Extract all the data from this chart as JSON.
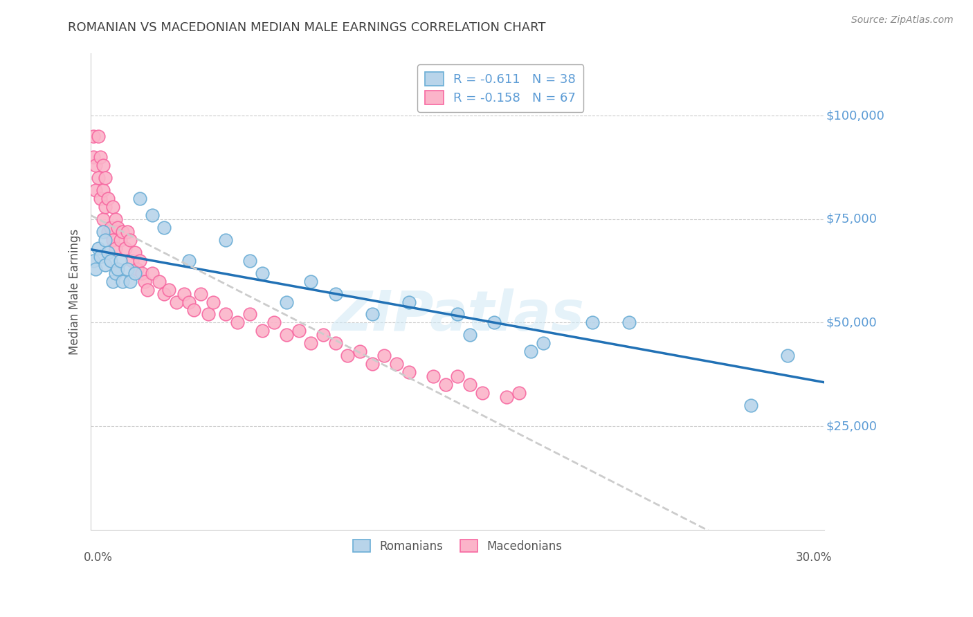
{
  "title": "ROMANIAN VS MACEDONIAN MEDIAN MALE EARNINGS CORRELATION CHART",
  "source": "Source: ZipAtlas.com",
  "ylabel": "Median Male Earnings",
  "xlim": [
    0.0,
    0.3
  ],
  "ylim": [
    0,
    115000
  ],
  "ytick_vals": [
    25000,
    50000,
    75000,
    100000
  ],
  "ytick_labels": [
    "$25,000",
    "$50,000",
    "$75,000",
    "$100,000"
  ],
  "watermark": "ZIPatlas",
  "romanian_face": "#b8d4ea",
  "romanian_edge": "#6baed6",
  "macedonian_face": "#fbb4c9",
  "macedonian_edge": "#f768a1",
  "romanian_line_color": "#2171b5",
  "macedonian_line_color": "#cccccc",
  "axis_label_color": "#5b9bd5",
  "title_color": "#404040",
  "source_color": "#888888",
  "watermark_color": "#d0e8f5",
  "legend_text_color": "#5b9bd5",
  "romanians_x": [
    0.001,
    0.002,
    0.003,
    0.004,
    0.005,
    0.006,
    0.006,
    0.007,
    0.008,
    0.009,
    0.01,
    0.011,
    0.012,
    0.013,
    0.015,
    0.016,
    0.018,
    0.02,
    0.025,
    0.03,
    0.04,
    0.055,
    0.065,
    0.07,
    0.08,
    0.09,
    0.1,
    0.115,
    0.13,
    0.15,
    0.155,
    0.165,
    0.18,
    0.185,
    0.205,
    0.22,
    0.27,
    0.285
  ],
  "romanians_y": [
    65000,
    63000,
    68000,
    66000,
    72000,
    64000,
    70000,
    67000,
    65000,
    60000,
    62000,
    63000,
    65000,
    60000,
    63000,
    60000,
    62000,
    80000,
    76000,
    73000,
    65000,
    70000,
    65000,
    62000,
    55000,
    60000,
    57000,
    52000,
    55000,
    52000,
    47000,
    50000,
    43000,
    45000,
    50000,
    50000,
    30000,
    42000
  ],
  "macedonians_x": [
    0.001,
    0.001,
    0.002,
    0.002,
    0.003,
    0.003,
    0.004,
    0.004,
    0.005,
    0.005,
    0.005,
    0.006,
    0.006,
    0.007,
    0.007,
    0.008,
    0.009,
    0.009,
    0.01,
    0.01,
    0.011,
    0.012,
    0.013,
    0.014,
    0.015,
    0.016,
    0.017,
    0.018,
    0.019,
    0.02,
    0.021,
    0.022,
    0.023,
    0.025,
    0.028,
    0.03,
    0.032,
    0.035,
    0.038,
    0.04,
    0.042,
    0.045,
    0.048,
    0.05,
    0.055,
    0.06,
    0.065,
    0.07,
    0.075,
    0.08,
    0.085,
    0.09,
    0.095,
    0.1,
    0.105,
    0.11,
    0.115,
    0.12,
    0.125,
    0.13,
    0.14,
    0.145,
    0.15,
    0.155,
    0.16,
    0.17,
    0.175
  ],
  "macedonians_y": [
    95000,
    90000,
    88000,
    82000,
    95000,
    85000,
    90000,
    80000,
    88000,
    82000,
    75000,
    85000,
    78000,
    80000,
    72000,
    73000,
    78000,
    70000,
    75000,
    68000,
    73000,
    70000,
    72000,
    68000,
    72000,
    70000,
    65000,
    67000,
    63000,
    65000,
    62000,
    60000,
    58000,
    62000,
    60000,
    57000,
    58000,
    55000,
    57000,
    55000,
    53000,
    57000,
    52000,
    55000,
    52000,
    50000,
    52000,
    48000,
    50000,
    47000,
    48000,
    45000,
    47000,
    45000,
    42000,
    43000,
    40000,
    42000,
    40000,
    38000,
    37000,
    35000,
    37000,
    35000,
    33000,
    32000,
    33000
  ]
}
